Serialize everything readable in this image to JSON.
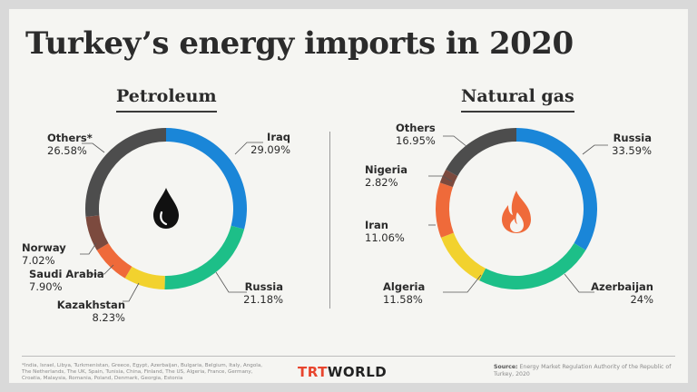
{
  "title": "Turkey’s energy imports in 2020",
  "chart_data": [
    {
      "type": "pie",
      "title": "Petroleum",
      "icon": "oil-drop-icon",
      "slices": [
        {
          "name": "Iraq",
          "value": 29.09,
          "label": "29.09%",
          "color": "#1a86d8"
        },
        {
          "name": "Russia",
          "value": 21.18,
          "label": "21.18%",
          "color": "#1dbf88"
        },
        {
          "name": "Kazakhstan",
          "value": 8.23,
          "label": "8.23%",
          "color": "#f2d22e"
        },
        {
          "name": "Saudi Arabia",
          "value": 7.9,
          "label": "7.90%",
          "color": "#ef6a3a"
        },
        {
          "name": "Norway",
          "value": 7.02,
          "label": "7.02%",
          "color": "#7c4a3e"
        },
        {
          "name": "Others*",
          "value": 26.58,
          "label": "26.58%",
          "color": "#4d4d4d"
        }
      ]
    },
    {
      "type": "pie",
      "title": "Natural gas",
      "icon": "flame-icon",
      "slices": [
        {
          "name": "Russia",
          "value": 33.59,
          "label": "33.59%",
          "color": "#1a86d8"
        },
        {
          "name": "Azerbaijan",
          "value": 24,
          "label": "24%",
          "color": "#1dbf88"
        },
        {
          "name": "Algeria",
          "value": 11.58,
          "label": "11.58%",
          "color": "#f2d22e"
        },
        {
          "name": "Iran",
          "value": 11.06,
          "label": "11.06%",
          "color": "#ef6a3a"
        },
        {
          "name": "Nigeria",
          "value": 2.82,
          "label": "2.82%",
          "color": "#7c4a3e"
        },
        {
          "name": "Others",
          "value": 16.95,
          "label": "16.95%",
          "color": "#4d4d4d"
        }
      ]
    }
  ],
  "footnote": "*India, Israel, Libya, Turkmenistan, Greece, Egypt, Azerbaijan, Bulgaria, Belgium, Italy, Angola, The Netherlands, The UK, Spain, Tunisia, China, Finland, The US, Algeria, France, Germany, Croatia, Malaysia, Romania, Poland, Denmark, Georgia, Estonia",
  "logo": {
    "part1": "TRT",
    "part2": "WORLD"
  },
  "source": {
    "label": "Source:",
    "text": "Energy Market Regulation Authority of the Republic of Turkey, 2020"
  }
}
